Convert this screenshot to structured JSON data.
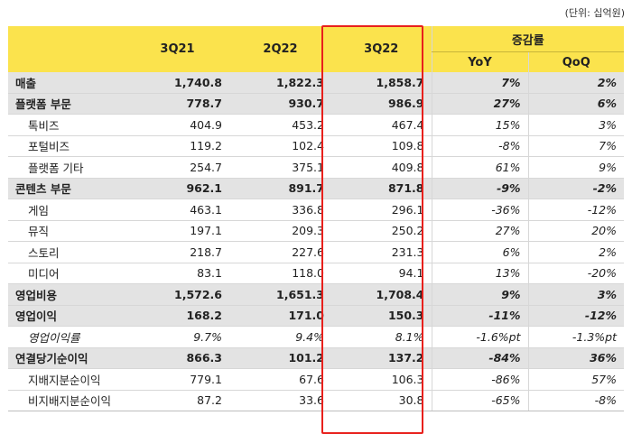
{
  "unit_note": "(단위: 십억원)",
  "header": {
    "periods": [
      "3Q21",
      "2Q22",
      "3Q22"
    ],
    "change_group": "증감률",
    "change_cols": [
      "YoY",
      "QoQ"
    ]
  },
  "rows": [
    {
      "label": "매출",
      "q321": "1,740.8",
      "q222": "1,822.3",
      "q322": "1,858.7",
      "yoy": "7%",
      "qoq": "2%"
    },
    {
      "label": "플랫폼 부문",
      "q321": "778.7",
      "q222": "930.7",
      "q322": "986.9",
      "yoy": "27%",
      "qoq": "6%"
    },
    {
      "label": "톡비즈",
      "q321": "404.9",
      "q222": "453.2",
      "q322": "467.4",
      "yoy": "15%",
      "qoq": "3%"
    },
    {
      "label": "포털비즈",
      "q321": "119.2",
      "q222": "102.4",
      "q322": "109.8",
      "yoy": "-8%",
      "qoq": "7%"
    },
    {
      "label": "플랫폼 기타",
      "q321": "254.7",
      "q222": "375.1",
      "q322": "409.8",
      "yoy": "61%",
      "qoq": "9%"
    },
    {
      "label": "콘텐츠 부문",
      "q321": "962.1",
      "q222": "891.7",
      "q322": "871.8",
      "yoy": "-9%",
      "qoq": "-2%"
    },
    {
      "label": "게임",
      "q321": "463.1",
      "q222": "336.8",
      "q322": "296.1",
      "yoy": "-36%",
      "qoq": "-12%"
    },
    {
      "label": "뮤직",
      "q321": "197.1",
      "q222": "209.3",
      "q322": "250.2",
      "yoy": "27%",
      "qoq": "20%"
    },
    {
      "label": "스토리",
      "q321": "218.7",
      "q222": "227.6",
      "q322": "231.3",
      "yoy": "6%",
      "qoq": "2%"
    },
    {
      "label": "미디어",
      "q321": "83.1",
      "q222": "118.0",
      "q322": "94.1",
      "yoy": "13%",
      "qoq": "-20%"
    },
    {
      "label": "영업비용",
      "q321": "1,572.6",
      "q222": "1,651.3",
      "q322": "1,708.4",
      "yoy": "9%",
      "qoq": "3%"
    },
    {
      "label": "영업이익",
      "q321": "168.2",
      "q222": "171.0",
      "q322": "150.3",
      "yoy": "-11%",
      "qoq": "-12%"
    },
    {
      "label": "영업이익률",
      "q321": "9.7%",
      "q222": "9.4%",
      "q322": "8.1%",
      "yoy": "-1.6%pt",
      "qoq": "-1.3%pt"
    },
    {
      "label": "연결당기순이익",
      "q321": "866.3",
      "q222": "101.2",
      "q322": "137.2",
      "yoy": "-84%",
      "qoq": "36%"
    },
    {
      "label": "지배지분순이익",
      "q321": "779.1",
      "q222": "67.6",
      "q322": "106.3",
      "yoy": "-86%",
      "qoq": "57%"
    },
    {
      "label": "비지배지분순이익",
      "q321": "87.2",
      "q222": "33.6",
      "q322": "30.8",
      "yoy": "-65%",
      "qoq": "-8%"
    }
  ],
  "colors": {
    "header_bg": "#fbe34d",
    "bold_row_bg": "#e3e3e3",
    "highlight_border": "#e8201c"
  }
}
